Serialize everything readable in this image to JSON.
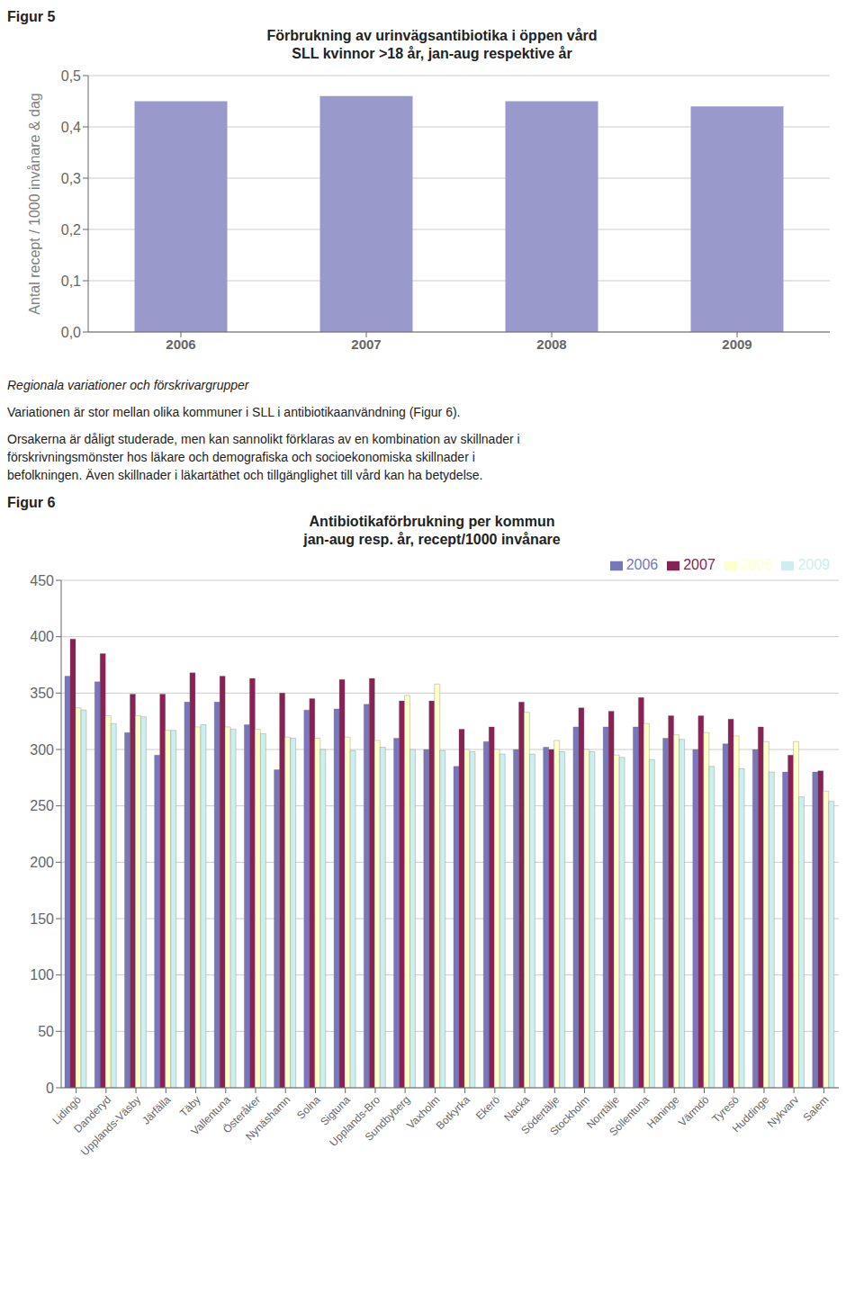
{
  "chart_data": [
    {
      "type": "bar",
      "title": "Förbrukning av urinvägsantibiotika i öppen vård\nSLL kvinnor >18 år, jan-aug respektive år",
      "annotations": [
        "Figur 5"
      ],
      "categories": [
        "2006",
        "2007",
        "2008",
        "2009"
      ],
      "values": [
        0.45,
        0.46,
        0.45,
        0.44
      ],
      "color": "#9999CC",
      "ylabel": "Antal recept / 1000 invånare & dag",
      "ylim": [
        0,
        0.5
      ],
      "yticks": [
        {
          "value": 0.0,
          "label": "0,0"
        },
        {
          "value": 0.1,
          "label": "0,1"
        },
        {
          "value": 0.2,
          "label": "0,2"
        },
        {
          "value": 0.3,
          "label": "0,3"
        },
        {
          "value": 0.4,
          "label": "0,4"
        },
        {
          "value": 0.5,
          "label": "0,5"
        }
      ],
      "grid": true
    },
    {
      "type": "bar",
      "title": "Antibiotikaförbrukning per kommun\njan-aug resp. år, recept/1000 invånare",
      "annotations": [
        "Regionala variationer och förskrivargrupper",
        "Variationen är stor mellan olika kommuner i SLL i antibiotikaanvändning (Figur 6).",
        "Orsakerna är dåligt studerade, men kan sannolikt förklaras av en kombination av skillnader i\nförskrivningsmönster hos läkare och demografiska och socioekonomiska skillnader i\nbefolkningen. Även skillnader i läkartäthet och tillgänglighet till vård kan ha betydelse.",
        "Figur 6"
      ],
      "categories": [
        "Lidingö",
        "Danderyd",
        "Upplands-Väsby",
        "Järfälla",
        "Täby",
        "Vallentuna",
        "Österåker",
        "Nynäshamn",
        "Solna",
        "Sigtuna",
        "Upplands-Bro",
        "Sundbyberg",
        "Vaxholm",
        "Botkyrka",
        "Ekerö",
        "Nacka",
        "Södertälje",
        "Stockholm",
        "Norrtälje",
        "Sollentuna",
        "Haninge",
        "Värmdö",
        "Tyresö",
        "Huddinge",
        "Nykvarv",
        "Salem"
      ],
      "series": [
        {
          "name": "2006",
          "color": "#7777BB",
          "values": [
            365,
            360,
            315,
            295,
            342,
            342,
            322,
            282,
            335,
            336,
            340,
            310,
            300,
            285,
            307,
            300,
            302,
            320,
            320,
            320,
            310,
            300,
            305,
            300,
            280,
            280
          ]
        },
        {
          "name": "2007",
          "color": "#882255",
          "values": [
            398,
            385,
            349,
            349,
            368,
            365,
            363,
            350,
            345,
            362,
            363,
            343,
            343,
            318,
            320,
            342,
            300,
            337,
            334,
            346,
            330,
            330,
            327,
            320,
            295,
            281
          ]
        },
        {
          "name": "2008",
          "color": "#FFFFCC",
          "values": [
            337,
            330,
            330,
            317,
            320,
            320,
            318,
            311,
            310,
            311,
            308,
            348,
            358,
            300,
            300,
            333,
            308,
            300,
            295,
            323,
            313,
            315,
            312,
            307,
            307,
            263
          ]
        },
        {
          "name": "2009",
          "color": "#CCEEEE",
          "values": [
            335,
            323,
            329,
            317,
            322,
            318,
            314,
            310,
            300,
            299,
            302,
            300,
            299,
            298,
            296,
            296,
            298,
            298,
            293,
            291,
            309,
            285,
            283,
            280,
            258,
            254
          ]
        }
      ],
      "ylim": [
        0,
        450
      ],
      "yticks": [
        0,
        50,
        100,
        150,
        200,
        250,
        300,
        350,
        400,
        450
      ],
      "grid": true,
      "legend": "upper right"
    }
  ]
}
